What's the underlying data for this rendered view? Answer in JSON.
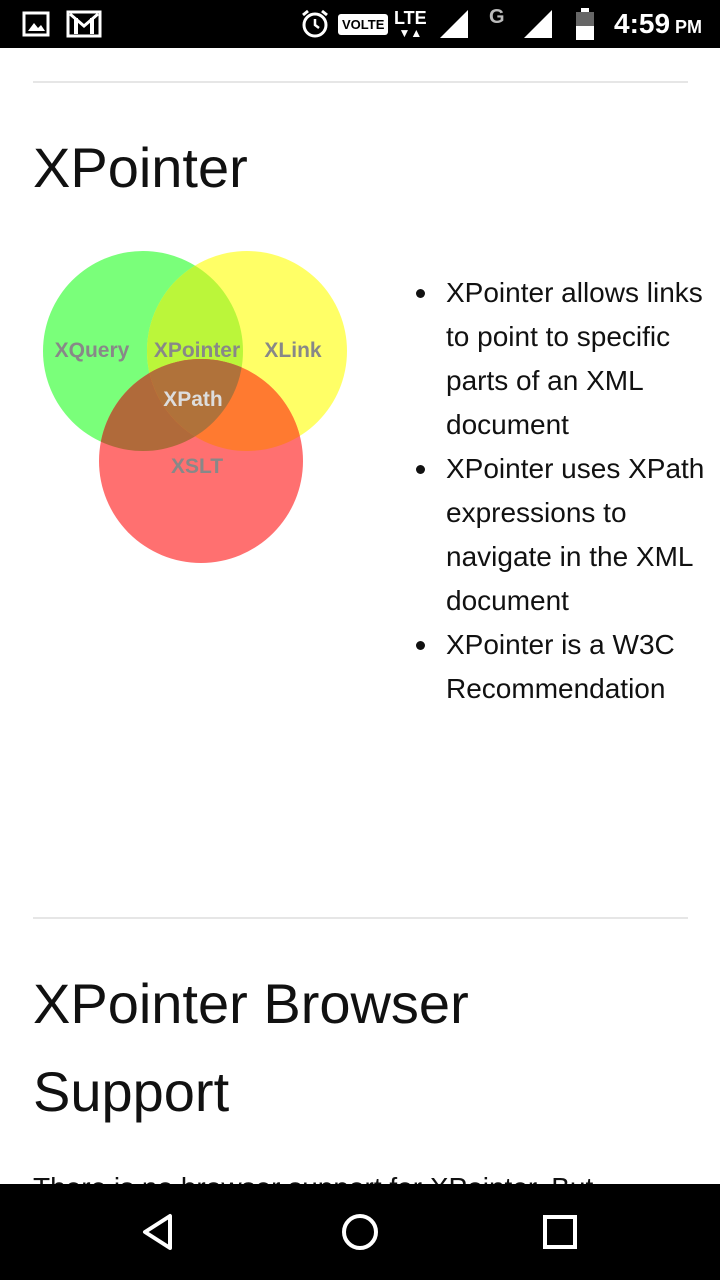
{
  "status_bar": {
    "icons_left": [
      "gallery-icon",
      "gmail-icon"
    ],
    "icons_right": [
      "alarm-icon",
      "volte-badge",
      "lte-icon",
      "signal-icon",
      "g-network-icon",
      "signal-icon-2",
      "battery-icon"
    ],
    "volte_label": "VOLTE",
    "lte_label": "LTE",
    "g_label": "G",
    "time": "4:59",
    "ampm": "PM"
  },
  "section1": {
    "title": "XPointer",
    "venn": {
      "labels": {
        "xquery": "XQuery",
        "xpointer": "XPointer",
        "xlink": "XLink",
        "xpath": "XPath",
        "xslt": "XSLT"
      },
      "colors": {
        "green": "#66ff66",
        "yellow": "#ffff44",
        "red": "#ff5555",
        "label": "#777777"
      }
    },
    "bullets": [
      "XPointer allows links to point to specific parts of an XML document",
      "XPointer uses XPath expressions to navigate in the XML document",
      "XPointer is a W3C Recommendation"
    ]
  },
  "section2": {
    "title_line1": "XPointer Browser",
    "title_line2": "Support",
    "cut_text": "There is no browser support for XPointer. But"
  },
  "nav_bar": {
    "buttons": [
      "back-icon",
      "home-icon",
      "recents-icon"
    ]
  }
}
